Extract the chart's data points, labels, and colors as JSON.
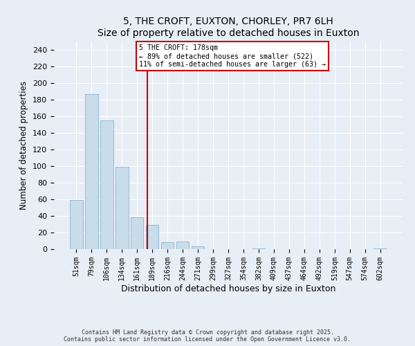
{
  "title": "5, THE CROFT, EUXTON, CHORLEY, PR7 6LH",
  "subtitle": "Size of property relative to detached houses in Euxton",
  "xlabel": "Distribution of detached houses by size in Euxton",
  "ylabel": "Number of detached properties",
  "bar_labels": [
    "51sqm",
    "79sqm",
    "106sqm",
    "134sqm",
    "161sqm",
    "189sqm",
    "216sqm",
    "244sqm",
    "271sqm",
    "299sqm",
    "327sqm",
    "354sqm",
    "382sqm",
    "409sqm",
    "437sqm",
    "464sqm",
    "492sqm",
    "519sqm",
    "547sqm",
    "574sqm",
    "602sqm"
  ],
  "bar_values": [
    59,
    187,
    155,
    99,
    38,
    29,
    8,
    9,
    3,
    0,
    0,
    0,
    1,
    0,
    0,
    0,
    0,
    0,
    0,
    0,
    1
  ],
  "bar_color": "#c9dcea",
  "bar_edge_color": "#8ab4d0",
  "property_label": "5 THE CROFT: 178sqm",
  "annotation_line1": "← 89% of detached houses are smaller (522)",
  "annotation_line2": "11% of semi-detached houses are larger (63) →",
  "vline_color": "#cc0000",
  "vline_x": 4.67,
  "ylim": [
    0,
    250
  ],
  "yticks": [
    0,
    20,
    40,
    60,
    80,
    100,
    120,
    140,
    160,
    180,
    200,
    220,
    240
  ],
  "footnote1": "Contains HM Land Registry data © Crown copyright and database right 2025.",
  "footnote2": "Contains public sector information licensed under the Open Government Licence v3.0.",
  "bg_color": "#e8eef5",
  "plot_bg_color": "#e8eef5"
}
